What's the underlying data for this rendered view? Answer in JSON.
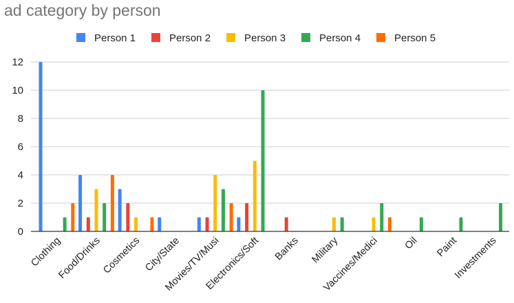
{
  "chart_data": {
    "type": "bar",
    "title": "ad category by person",
    "xlabel": "",
    "ylabel": "",
    "ylim": [
      0,
      12
    ],
    "yticks": [
      0,
      2,
      4,
      6,
      8,
      10,
      12
    ],
    "grid": true,
    "legend_position": "top",
    "categories": [
      "Clothing",
      "Food/Drinks",
      "Cosmetics",
      "City/State",
      "Movies/TV/Musi",
      "Electronics/Soft",
      "Banks",
      "Military",
      "Vaccines/Medici",
      "Oil",
      "Paint",
      "Investments"
    ],
    "series": [
      {
        "name": "Person 1",
        "color": "#4285f4",
        "values": [
          12,
          4,
          3,
          1,
          1,
          1,
          0,
          0,
          0,
          0,
          0,
          0
        ]
      },
      {
        "name": "Person 2",
        "color": "#ea4335",
        "values": [
          0,
          1,
          2,
          0,
          1,
          2,
          1,
          0,
          0,
          0,
          0,
          0
        ]
      },
      {
        "name": "Person 3",
        "color": "#fbbc04",
        "values": [
          0,
          3,
          1,
          0,
          4,
          5,
          0,
          1,
          1,
          0,
          0,
          0
        ]
      },
      {
        "name": "Person 4",
        "color": "#34a853",
        "values": [
          1,
          2,
          0,
          0,
          3,
          10,
          0,
          1,
          2,
          1,
          1,
          2
        ]
      },
      {
        "name": "Person 5",
        "color": "#ff6d01",
        "values": [
          2,
          4,
          1,
          0,
          2,
          0,
          0,
          0,
          1,
          0,
          0,
          0
        ]
      }
    ]
  }
}
